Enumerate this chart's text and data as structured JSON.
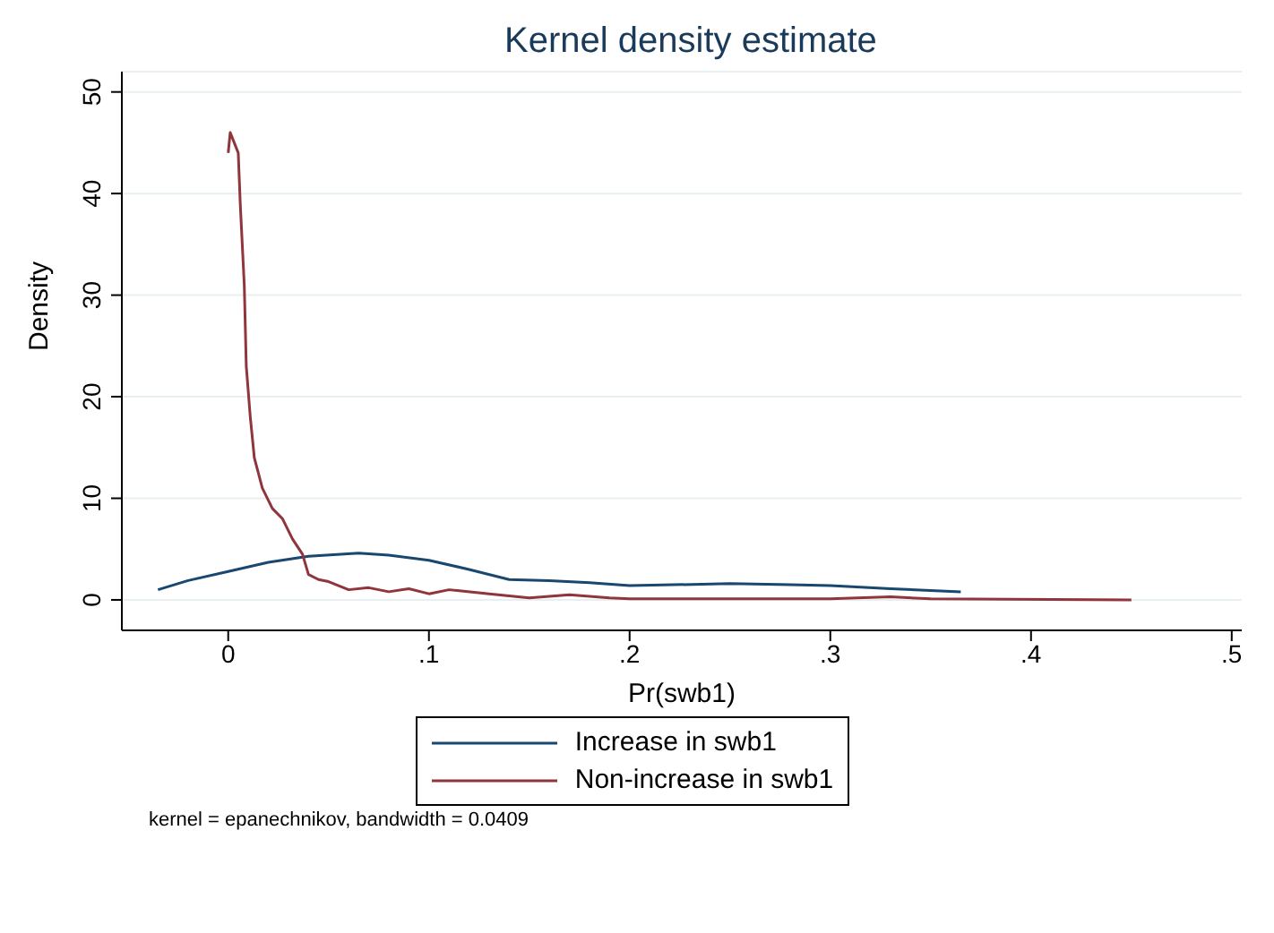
{
  "chart_data": {
    "type": "line",
    "title": "Kernel density estimate",
    "xlabel": "Pr(swb1)",
    "ylabel": "Density",
    "annotations": [
      "kernel = epanechnikov, bandwidth = 0.0409"
    ],
    "xlim": [
      -0.053,
      0.505
    ],
    "ylim": [
      -3,
      52
    ],
    "xticks": [
      {
        "value": 0,
        "label": "0"
      },
      {
        "value": 0.1,
        "label": ".1"
      },
      {
        "value": 0.2,
        "label": ".2"
      },
      {
        "value": 0.3,
        "label": ".3"
      },
      {
        "value": 0.4,
        "label": ".4"
      },
      {
        "value": 0.5,
        "label": ".5"
      }
    ],
    "yticks": [
      0,
      10,
      20,
      30,
      40,
      50
    ],
    "grid": "y",
    "legend": "bottom",
    "series": [
      {
        "name": "Increase in swb1",
        "color": "#1a476f",
        "x": [
          -0.035,
          -0.02,
          0,
          0.02,
          0.04,
          0.065,
          0.08,
          0.1,
          0.12,
          0.14,
          0.16,
          0.18,
          0.2,
          0.25,
          0.28,
          0.3,
          0.33,
          0.365
        ],
        "values": [
          1,
          1.9,
          2.8,
          3.7,
          4.3,
          4.6,
          4.4,
          3.9,
          3,
          2,
          1.9,
          1.7,
          1.4,
          1.6,
          1.5,
          1.4,
          1.1,
          0.8
        ]
      },
      {
        "name": "Non-increase in swb1",
        "color": "#90353b",
        "x": [
          0,
          0.001,
          0.003,
          0.005,
          0.006,
          0.008,
          0.009,
          0.011,
          0.013,
          0.017,
          0.022,
          0.027,
          0.032,
          0.037,
          0.04,
          0.045,
          0.05,
          0.06,
          0.07,
          0.08,
          0.09,
          0.1,
          0.11,
          0.13,
          0.15,
          0.17,
          0.19,
          0.2,
          0.3,
          0.33,
          0.35,
          0.45
        ],
        "values": [
          44,
          46,
          45,
          44,
          39,
          31,
          23,
          18,
          14,
          11,
          9,
          8,
          6,
          4.5,
          2.5,
          2,
          1.8,
          1,
          1.2,
          0.8,
          1.1,
          0.6,
          1,
          0.6,
          0.2,
          0.5,
          0.2,
          0.1,
          0.1,
          0.3,
          0.1,
          0
        ]
      }
    ]
  }
}
